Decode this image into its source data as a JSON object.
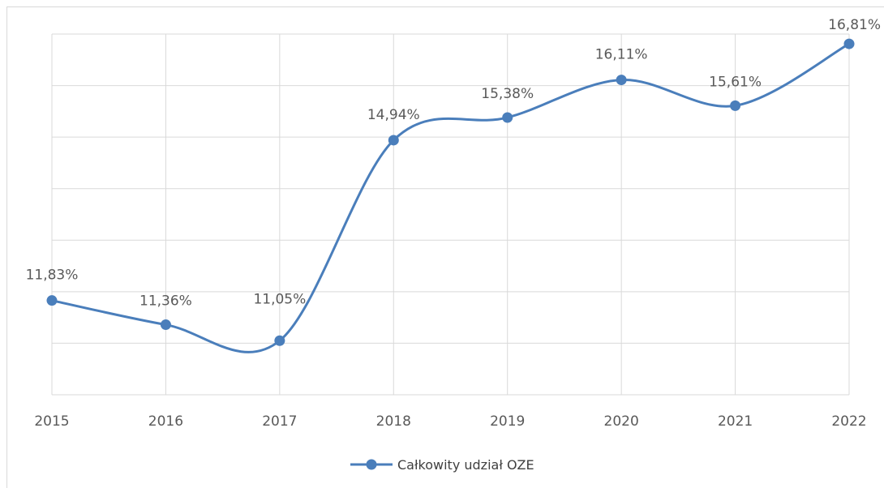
{
  "chart_data": {
    "type": "line",
    "title": "",
    "xlabel": "",
    "ylabel": "",
    "categories": [
      "2015",
      "2016",
      "2017",
      "2018",
      "2019",
      "2020",
      "2021",
      "2022"
    ],
    "series": [
      {
        "name": "Całkowity udział OZE",
        "values": [
          11.83,
          11.36,
          11.05,
          14.94,
          15.38,
          16.11,
          15.61,
          16.81
        ],
        "labels": [
          "11,83%",
          "11,36%",
          "11,05%",
          "14,94%",
          "15,38%",
          "16,11%",
          "15,61%",
          "16,81%"
        ],
        "color": "#4a7ebb",
        "smooth": true,
        "marker": "circle"
      }
    ],
    "ylim": [
      10,
      17
    ],
    "y_axis_labels_visible": false,
    "grid": true,
    "legend_position": "bottom"
  }
}
